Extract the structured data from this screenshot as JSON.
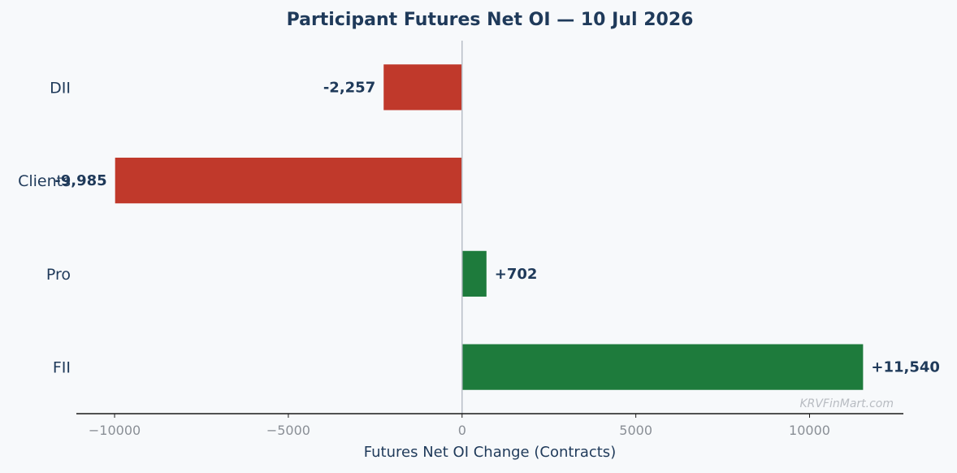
{
  "chart_data": {
    "type": "bar",
    "orientation": "horizontal",
    "title": "Participant Futures Net OI — 10 Jul 2026",
    "xlabel": "Futures Net OI Change (Contracts)",
    "ylabel": "",
    "categories": [
      "DII",
      "Clients",
      "Pro",
      "FII"
    ],
    "values": [
      -2257,
      -9985,
      702,
      11540
    ],
    "value_labels": [
      "-2,257",
      "-9,985",
      "+702",
      "+11,540"
    ],
    "xlim": [
      -11100,
      12700
    ],
    "xticks": [
      -10000,
      -5000,
      0,
      5000,
      10000
    ],
    "xtick_labels": [
      "−10000",
      "−5000",
      "0",
      "5000",
      "10000"
    ],
    "grid": false,
    "colors": {
      "negative": "#c0392b",
      "positive": "#1e7b3c",
      "zero_line": "#b8bec7",
      "axis": "#1a1a1a",
      "text": "#1f3a5a"
    },
    "watermark": "KRVFinMart.com"
  }
}
